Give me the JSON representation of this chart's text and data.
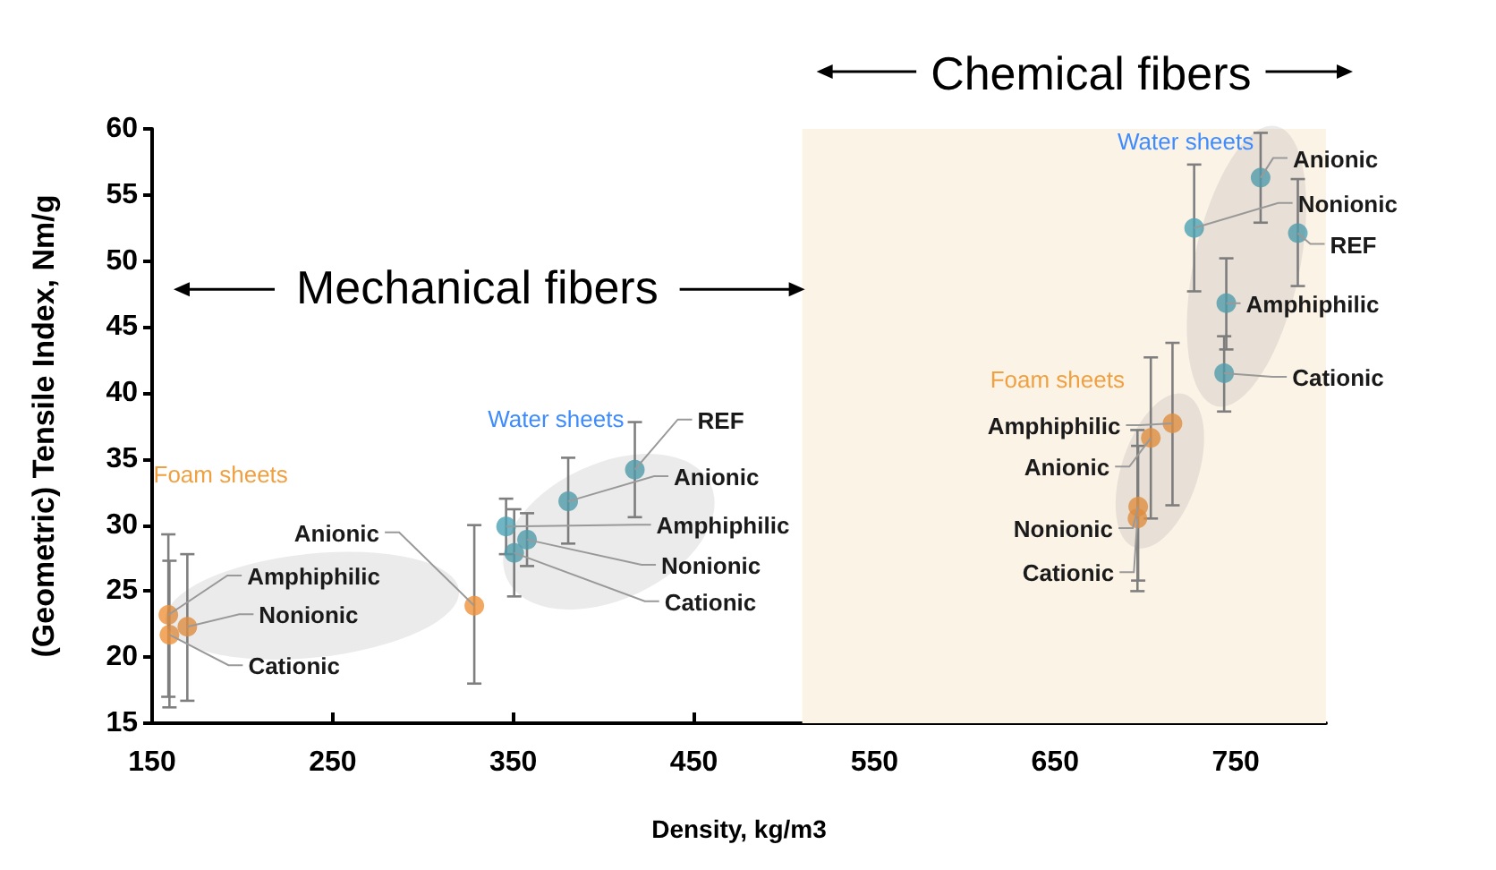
{
  "chart_data": {
    "type": "scatter",
    "xlabel": "Density, kg/m3",
    "ylabel": "(Geometric) Tensile Index, Nm/g",
    "xlim": [
      150,
      800
    ],
    "xticks": [
      150,
      250,
      350,
      450,
      550,
      650,
      750
    ],
    "ylim": [
      15,
      60
    ],
    "yticks": [
      15,
      20,
      25,
      30,
      35,
      40,
      45,
      50,
      55,
      60
    ],
    "grid": false,
    "marker": "circle",
    "bands": [
      {
        "axis": "x",
        "from": 510,
        "to": 800,
        "label": "Chemical fibers",
        "color": "#fcf3e7"
      }
    ],
    "series": [
      {
        "color": "#f0923b",
        "x": [
          159,
          169.5,
          159.6,
          328.4
        ],
        "values": [
          23.2,
          22.3,
          21.7,
          23.9
        ],
        "errors": [
          [
            17.0,
            29.3
          ],
          [
            16.7,
            27.8
          ],
          [
            16.2,
            27.3
          ],
          [
            18.0,
            30.0
          ]
        ]
      },
      {
        "color": "#4ba3b4",
        "x": [
          417.3,
          380.4,
          346,
          357.6,
          350.5
        ],
        "values": [
          34.2,
          31.8,
          29.9,
          28.9,
          27.9
        ],
        "errors": [
          [
            30.6,
            37.8
          ],
          [
            28.6,
            35.1
          ],
          [
            27.8,
            32.0
          ],
          [
            26.9,
            30.9
          ],
          [
            24.6,
            31.2
          ]
        ]
      },
      {
        "color": "#4ba3b4",
        "x": [
          763.8,
          727,
          784.4,
          744.8,
          743.6
        ],
        "values": [
          56.3,
          52.5,
          52.1,
          46.8,
          41.5
        ],
        "errors": [
          [
            52.9,
            59.7
          ],
          [
            47.7,
            57.3
          ],
          [
            48.1,
            56.2
          ],
          [
            43.3,
            50.2
          ],
          [
            38.6,
            44.3
          ]
        ]
      },
      {
        "color": "#f0923b",
        "x": [
          715,
          703,
          696,
          695.6
        ],
        "values": [
          37.7,
          36.6,
          31.4,
          30.5
        ],
        "errors": [
          [
            31.5,
            43.8
          ],
          [
            30.5,
            42.7
          ],
          [
            25.8,
            36.0
          ],
          [
            25.0,
            37.2
          ]
        ]
      }
    ],
    "annotations": [
      "Mechanical fibers",
      "Foam sheets",
      "Water sheets",
      "Water sheets",
      "Foam sheets",
      {
        "text": "Amphiphilic",
        "x": 159,
        "y": 23.2
      },
      {
        "text": "Nonionic",
        "x": 169.5,
        "y": 22.3
      },
      {
        "text": "Cationic",
        "x": 159.6,
        "y": 21.7
      },
      {
        "text": "Anionic",
        "x": 328.4,
        "y": 23.9
      },
      {
        "text": "REF",
        "x": 417.3,
        "y": 34.2
      },
      {
        "text": "Anionic",
        "x": 380.4,
        "y": 31.8
      },
      {
        "text": "Amphiphilic",
        "x": 346,
        "y": 29.9
      },
      {
        "text": "Nonionic",
        "x": 357.6,
        "y": 28.9
      },
      {
        "text": "Cationic",
        "x": 350.5,
        "y": 27.9
      },
      {
        "text": "Anionic",
        "x": 763.8,
        "y": 56.3
      },
      {
        "text": "Nonionic",
        "x": 727,
        "y": 52.5
      },
      {
        "text": "REF",
        "x": 784.4,
        "y": 52.1
      },
      {
        "text": "Amphiphilic",
        "x": 744.8,
        "y": 46.8
      },
      {
        "text": "Cationic",
        "x": 743.6,
        "y": 41.5
      },
      {
        "text": "Amphiphilic",
        "x": 715,
        "y": 37.7
      },
      {
        "text": "Anionic",
        "x": 703,
        "y": 36.6
      },
      {
        "text": "Nonionic",
        "x": 696,
        "y": 31.4
      },
      {
        "text": "Cationic",
        "x": 695.6,
        "y": 30.5
      }
    ]
  }
}
